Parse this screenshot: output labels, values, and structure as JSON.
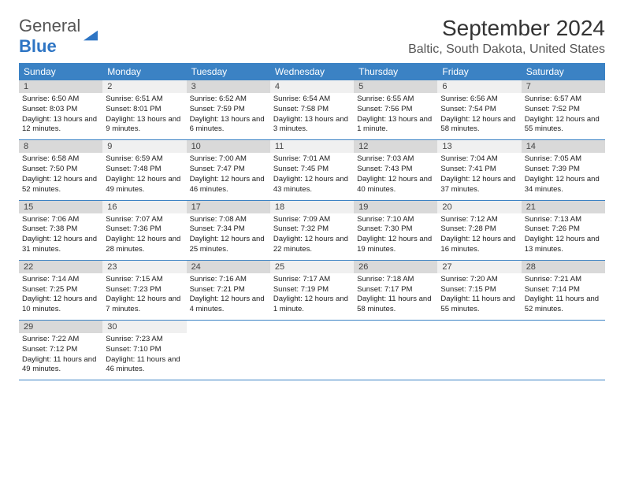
{
  "logo": {
    "text_general": "General",
    "text_blue": "Blue"
  },
  "title": "September 2024",
  "location": "Baltic, South Dakota, United States",
  "colors": {
    "header_bg": "#3b82c4",
    "daynum_odd_bg": "#d9d9d9",
    "daynum_even_bg": "#f0f0f0",
    "week_border": "#3b82c4"
  },
  "weekdays": [
    "Sunday",
    "Monday",
    "Tuesday",
    "Wednesday",
    "Thursday",
    "Friday",
    "Saturday"
  ],
  "weeks": [
    [
      {
        "n": "1",
        "sr": "6:50 AM",
        "ss": "8:03 PM",
        "dl": "13 hours and 12 minutes."
      },
      {
        "n": "2",
        "sr": "6:51 AM",
        "ss": "8:01 PM",
        "dl": "13 hours and 9 minutes."
      },
      {
        "n": "3",
        "sr": "6:52 AM",
        "ss": "7:59 PM",
        "dl": "13 hours and 6 minutes."
      },
      {
        "n": "4",
        "sr": "6:54 AM",
        "ss": "7:58 PM",
        "dl": "13 hours and 3 minutes."
      },
      {
        "n": "5",
        "sr": "6:55 AM",
        "ss": "7:56 PM",
        "dl": "13 hours and 1 minute."
      },
      {
        "n": "6",
        "sr": "6:56 AM",
        "ss": "7:54 PM",
        "dl": "12 hours and 58 minutes."
      },
      {
        "n": "7",
        "sr": "6:57 AM",
        "ss": "7:52 PM",
        "dl": "12 hours and 55 minutes."
      }
    ],
    [
      {
        "n": "8",
        "sr": "6:58 AM",
        "ss": "7:50 PM",
        "dl": "12 hours and 52 minutes."
      },
      {
        "n": "9",
        "sr": "6:59 AM",
        "ss": "7:48 PM",
        "dl": "12 hours and 49 minutes."
      },
      {
        "n": "10",
        "sr": "7:00 AM",
        "ss": "7:47 PM",
        "dl": "12 hours and 46 minutes."
      },
      {
        "n": "11",
        "sr": "7:01 AM",
        "ss": "7:45 PM",
        "dl": "12 hours and 43 minutes."
      },
      {
        "n": "12",
        "sr": "7:03 AM",
        "ss": "7:43 PM",
        "dl": "12 hours and 40 minutes."
      },
      {
        "n": "13",
        "sr": "7:04 AM",
        "ss": "7:41 PM",
        "dl": "12 hours and 37 minutes."
      },
      {
        "n": "14",
        "sr": "7:05 AM",
        "ss": "7:39 PM",
        "dl": "12 hours and 34 minutes."
      }
    ],
    [
      {
        "n": "15",
        "sr": "7:06 AM",
        "ss": "7:38 PM",
        "dl": "12 hours and 31 minutes."
      },
      {
        "n": "16",
        "sr": "7:07 AM",
        "ss": "7:36 PM",
        "dl": "12 hours and 28 minutes."
      },
      {
        "n": "17",
        "sr": "7:08 AM",
        "ss": "7:34 PM",
        "dl": "12 hours and 25 minutes."
      },
      {
        "n": "18",
        "sr": "7:09 AM",
        "ss": "7:32 PM",
        "dl": "12 hours and 22 minutes."
      },
      {
        "n": "19",
        "sr": "7:10 AM",
        "ss": "7:30 PM",
        "dl": "12 hours and 19 minutes."
      },
      {
        "n": "20",
        "sr": "7:12 AM",
        "ss": "7:28 PM",
        "dl": "12 hours and 16 minutes."
      },
      {
        "n": "21",
        "sr": "7:13 AM",
        "ss": "7:26 PM",
        "dl": "12 hours and 13 minutes."
      }
    ],
    [
      {
        "n": "22",
        "sr": "7:14 AM",
        "ss": "7:25 PM",
        "dl": "12 hours and 10 minutes."
      },
      {
        "n": "23",
        "sr": "7:15 AM",
        "ss": "7:23 PM",
        "dl": "12 hours and 7 minutes."
      },
      {
        "n": "24",
        "sr": "7:16 AM",
        "ss": "7:21 PM",
        "dl": "12 hours and 4 minutes."
      },
      {
        "n": "25",
        "sr": "7:17 AM",
        "ss": "7:19 PM",
        "dl": "12 hours and 1 minute."
      },
      {
        "n": "26",
        "sr": "7:18 AM",
        "ss": "7:17 PM",
        "dl": "11 hours and 58 minutes."
      },
      {
        "n": "27",
        "sr": "7:20 AM",
        "ss": "7:15 PM",
        "dl": "11 hours and 55 minutes."
      },
      {
        "n": "28",
        "sr": "7:21 AM",
        "ss": "7:14 PM",
        "dl": "11 hours and 52 minutes."
      }
    ],
    [
      {
        "n": "29",
        "sr": "7:22 AM",
        "ss": "7:12 PM",
        "dl": "11 hours and 49 minutes."
      },
      {
        "n": "30",
        "sr": "7:23 AM",
        "ss": "7:10 PM",
        "dl": "11 hours and 46 minutes."
      },
      {
        "empty": true
      },
      {
        "empty": true
      },
      {
        "empty": true
      },
      {
        "empty": true
      },
      {
        "empty": true
      }
    ]
  ],
  "labels": {
    "sunrise": "Sunrise:",
    "sunset": "Sunset:",
    "daylight": "Daylight:"
  }
}
